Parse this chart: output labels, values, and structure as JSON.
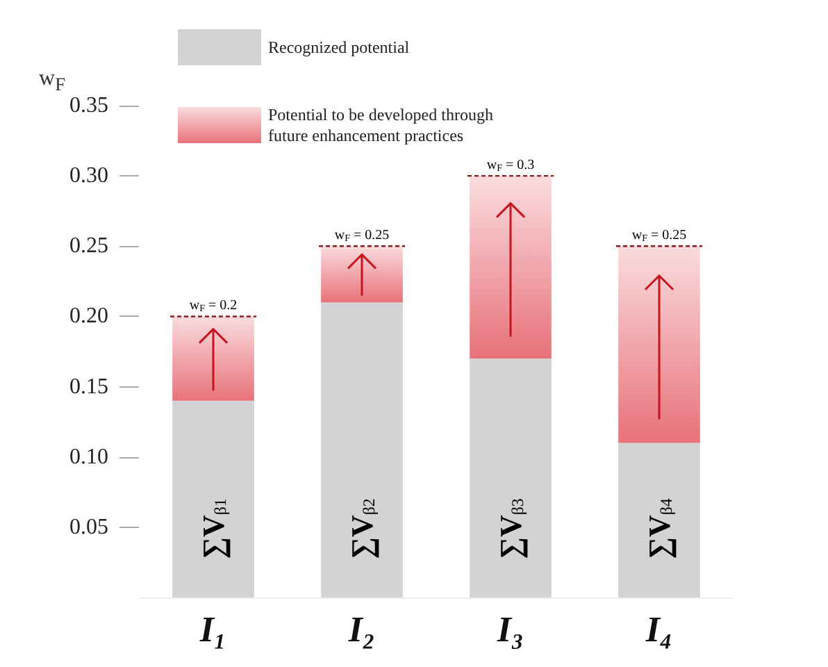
{
  "chart_data": {
    "type": "bar",
    "stacked": true,
    "ylabel": "w$_{F}$",
    "categories": [
      "I₁",
      "I₂",
      "I₃",
      "I₄"
    ],
    "series": [
      {
        "name": "Recognized potential",
        "color": "#d3d3d5",
        "values": [
          0.14,
          0.21,
          0.17,
          0.11
        ]
      },
      {
        "name": "Potential to be developed through future enhancement practices",
        "color": "#e8727a",
        "values": [
          0.06,
          0.04,
          0.13,
          0.14
        ]
      }
    ],
    "ylim": [
      0,
      0.35
    ],
    "yticks": [
      0.05,
      {
        "value": 0.1,
        "label": "0.10"
      },
      0.15,
      {
        "value": 0.2,
        "label": "0.20"
      },
      0.25,
      {
        "value": 0.3,
        "label": "0.30"
      },
      0.35
    ],
    "grid": false,
    "legend": "top",
    "annotations": [
      {
        "text": "w$_{F}$ = 0.2",
        "x": "I₁",
        "y": 0.2
      },
      {
        "text": "w$_{F}$ = 0.25",
        "x": "I₂",
        "y": 0.25
      },
      {
        "text": "w$_{F}$ = 0.3",
        "x": "I₃",
        "y": 0.3
      },
      {
        "text": "w$_{F}$ = 0.25",
        "x": "I₄",
        "y": 0.25
      },
      "∑V$_{β1}$",
      "∑V$_{β2}$",
      "∑V$_{β3}$",
      "∑V$_{β4}$"
    ]
  }
}
